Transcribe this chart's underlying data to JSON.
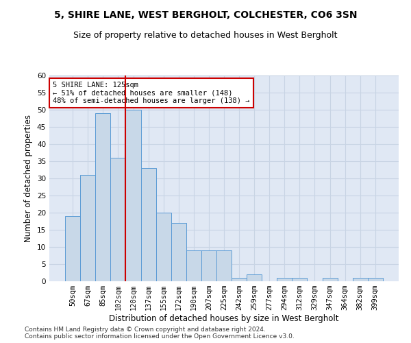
{
  "title": "5, SHIRE LANE, WEST BERGHOLT, COLCHESTER, CO6 3SN",
  "subtitle": "Size of property relative to detached houses in West Bergholt",
  "xlabel": "Distribution of detached houses by size in West Bergholt",
  "ylabel": "Number of detached properties",
  "bar_color": "#c8d8e8",
  "bar_edge_color": "#5b9bd5",
  "vline_color": "#cc0000",
  "vline_x_idx": 4,
  "annotation_text": "5 SHIRE LANE: 125sqm\n← 51% of detached houses are smaller (148)\n48% of semi-detached houses are larger (138) →",
  "annotation_box_color": "#ffffff",
  "annotation_box_edge": "#cc0000",
  "categories": [
    "50sqm",
    "67sqm",
    "85sqm",
    "102sqm",
    "120sqm",
    "137sqm",
    "155sqm",
    "172sqm",
    "190sqm",
    "207sqm",
    "225sqm",
    "242sqm",
    "259sqm",
    "277sqm",
    "294sqm",
    "312sqm",
    "329sqm",
    "347sqm",
    "364sqm",
    "382sqm",
    "399sqm"
  ],
  "values": [
    19,
    31,
    49,
    36,
    50,
    33,
    20,
    17,
    9,
    9,
    9,
    1,
    2,
    0,
    1,
    1,
    0,
    1,
    0,
    1,
    1
  ],
  "ylim": [
    0,
    60
  ],
  "yticks": [
    0,
    5,
    10,
    15,
    20,
    25,
    30,
    35,
    40,
    45,
    50,
    55,
    60
  ],
  "grid_color": "#c8d4e4",
  "background_color": "#e0e8f4",
  "footer": "Contains HM Land Registry data © Crown copyright and database right 2024.\nContains public sector information licensed under the Open Government Licence v3.0.",
  "title_fontsize": 10,
  "subtitle_fontsize": 9,
  "xlabel_fontsize": 8.5,
  "ylabel_fontsize": 8.5,
  "tick_fontsize": 7.5,
  "footer_fontsize": 6.5
}
